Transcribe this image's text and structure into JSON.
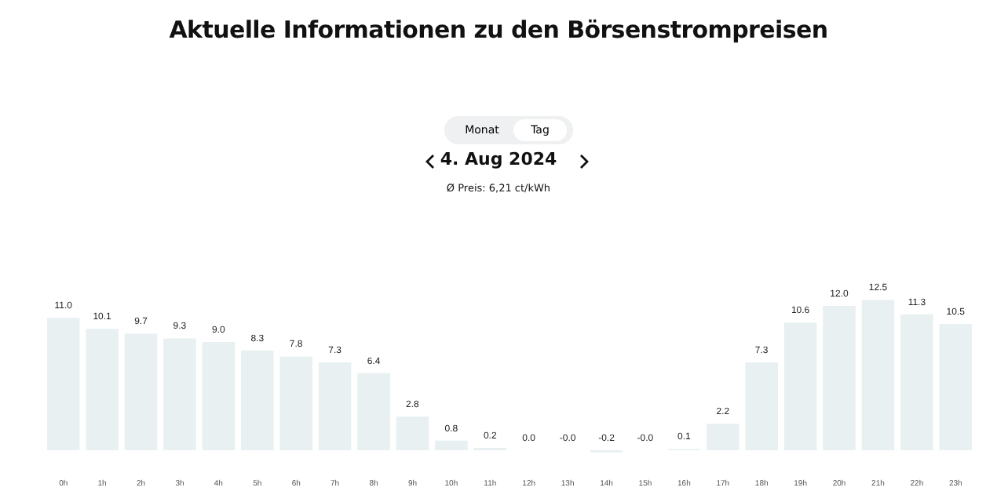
{
  "chart_data": {
    "type": "bar",
    "title": "Aktuelle Informationen zu den Börsenstrompreisen",
    "subtitle": "4. Aug 2024",
    "annotations": [
      "Monat",
      "Tag",
      "Ø Preis: 6,21 ct/kWh"
    ],
    "categories": [
      "0h",
      "1h",
      "2h",
      "3h",
      "4h",
      "5h",
      "6h",
      "7h",
      "8h",
      "9h",
      "10h",
      "11h",
      "12h",
      "13h",
      "14h",
      "15h",
      "16h",
      "17h",
      "18h",
      "19h",
      "20h",
      "21h",
      "22h",
      "23h"
    ],
    "values": [
      11.0,
      10.1,
      9.7,
      9.3,
      9.0,
      8.3,
      7.8,
      7.3,
      6.4,
      2.8,
      0.8,
      0.2,
      0.0,
      -0.0,
      -0.2,
      -0.0,
      0.1,
      2.2,
      7.3,
      10.6,
      12.0,
      12.5,
      11.3,
      10.5
    ],
    "value_labels": [
      "11.0",
      "10.1",
      "9.7",
      "9.3",
      "9.0",
      "8.3",
      "7.8",
      "7.3",
      "6.4",
      "2.8",
      "0.8",
      "0.2",
      "0.0",
      "-0.0",
      "-0.2",
      "-0.0",
      "0.1",
      "2.2",
      "7.3",
      "10.6",
      "12.0",
      "12.5",
      "11.3",
      "10.5"
    ],
    "color": "#e8f0f2",
    "tick_labels": "x"
  }
}
